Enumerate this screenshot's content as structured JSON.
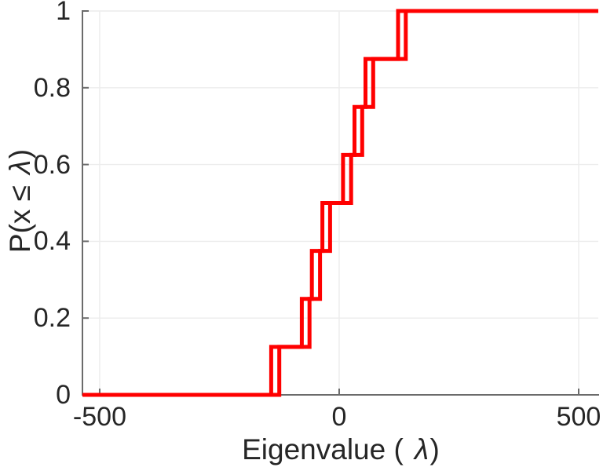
{
  "chart_data": {
    "type": "line",
    "subtype": "ecdf-staircase",
    "title": "",
    "xlabel": {
      "prefix": "Eigenvalue (",
      "symbol": "λ",
      "suffix": ")"
    },
    "ylabel": {
      "prefix": "P(x ≤",
      "symbol": "λ",
      "suffix": ")"
    },
    "xlim": [
      -536,
      541
    ],
    "ylim": [
      0,
      1
    ],
    "x_ticks": {
      "values": [
        -500,
        0,
        500
      ],
      "labels": [
        "-500",
        "0",
        "500"
      ]
    },
    "y_ticks": {
      "values": [
        0,
        0.2,
        0.4,
        0.6,
        0.8,
        1
      ],
      "labels": [
        "0",
        "0.2",
        "0.4",
        "0.6",
        "0.8",
        "1"
      ]
    },
    "grid": true,
    "legend": "none",
    "n_points": 8,
    "step_height": 0.125,
    "cdf_levels": [
      0.125,
      0.25,
      0.375,
      0.5,
      0.625,
      0.75,
      0.875,
      1
    ],
    "series": [
      {
        "name": "ecdf-1",
        "color": "#ff0000",
        "line_width": 5,
        "jump_x": [
          -142,
          -78,
          -57,
          -35,
          8,
          32,
          55,
          123
        ]
      },
      {
        "name": "ecdf-2",
        "color": "#ff0000",
        "line_width": 5,
        "jump_x": [
          -125,
          -62,
          -40,
          -19,
          25,
          48,
          71,
          139
        ]
      }
    ],
    "colors": {
      "line": "#ff0000",
      "grid": "#ececec",
      "axis": "#6b6b6b",
      "text": "#262626",
      "background": "#ffffff"
    }
  }
}
